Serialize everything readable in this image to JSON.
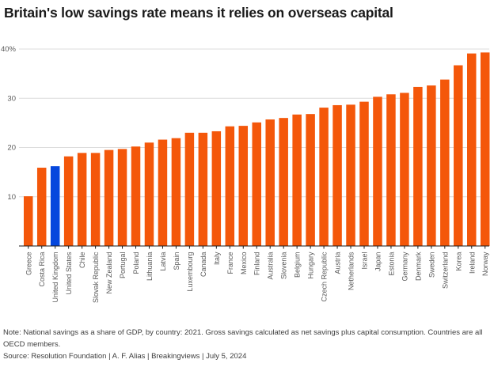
{
  "title": "Britain's low savings rate means it relies on overseas capital",
  "note": "Note: National savings as a share of GDP, by country: 2021. Gross savings calculated as net savings plus capital consumption. Countries are all OECD members.",
  "source": "Source: Resolution Foundation | A. F. Alias | Breakingviews | July 5, 2024",
  "colors": {
    "bar": "#F4570A",
    "highlight": "#0547DD",
    "grid": "#DCDCDC",
    "axis": "#1A1A1A",
    "tick_label": "#5A5A5A",
    "title": "#1A1A1A",
    "footnote": "#3D3D3D",
    "background": "#FFFFFF"
  },
  "chart_data": {
    "type": "bar",
    "title": "Britain's low savings rate means it relies on overseas capital",
    "xlabel": "",
    "ylabel": "",
    "ylim": [
      0,
      40
    ],
    "grid": true,
    "legend": false,
    "y_ticks": [
      10,
      20,
      30,
      40
    ],
    "y_tick_labels": [
      "10",
      "20",
      "30",
      "40%"
    ],
    "highlight_category": "United Kingdom",
    "categories": [
      "Greece",
      "Costa Rica",
      "United Kingdom",
      "United States",
      "Chile",
      "Slovak Republic",
      "New Zealand",
      "Portugal",
      "Poland",
      "Lithuania",
      "Latvia",
      "Spain",
      "Luxembourg",
      "Canada",
      "Italy",
      "France",
      "Mexico",
      "Finland",
      "Australia",
      "Slovenia",
      "Belgium",
      "Hungary",
      "Czech Republic",
      "Austria",
      "Netherlands",
      "Israel",
      "Japan",
      "Estonia",
      "Germany",
      "Denmark",
      "Sweden",
      "Switzerland",
      "Korea",
      "Ireland",
      "Norway"
    ],
    "values": [
      10.1,
      15.9,
      16.2,
      18.2,
      18.9,
      18.9,
      19.5,
      19.7,
      20.2,
      21.0,
      21.6,
      21.9,
      23.0,
      23.0,
      23.3,
      24.3,
      24.4,
      25.1,
      25.7,
      26.0,
      26.7,
      26.8,
      28.1,
      28.6,
      28.7,
      29.3,
      30.3,
      30.8,
      31.1,
      32.3,
      32.6,
      33.8,
      36.7,
      39.1,
      39.3
    ]
  }
}
